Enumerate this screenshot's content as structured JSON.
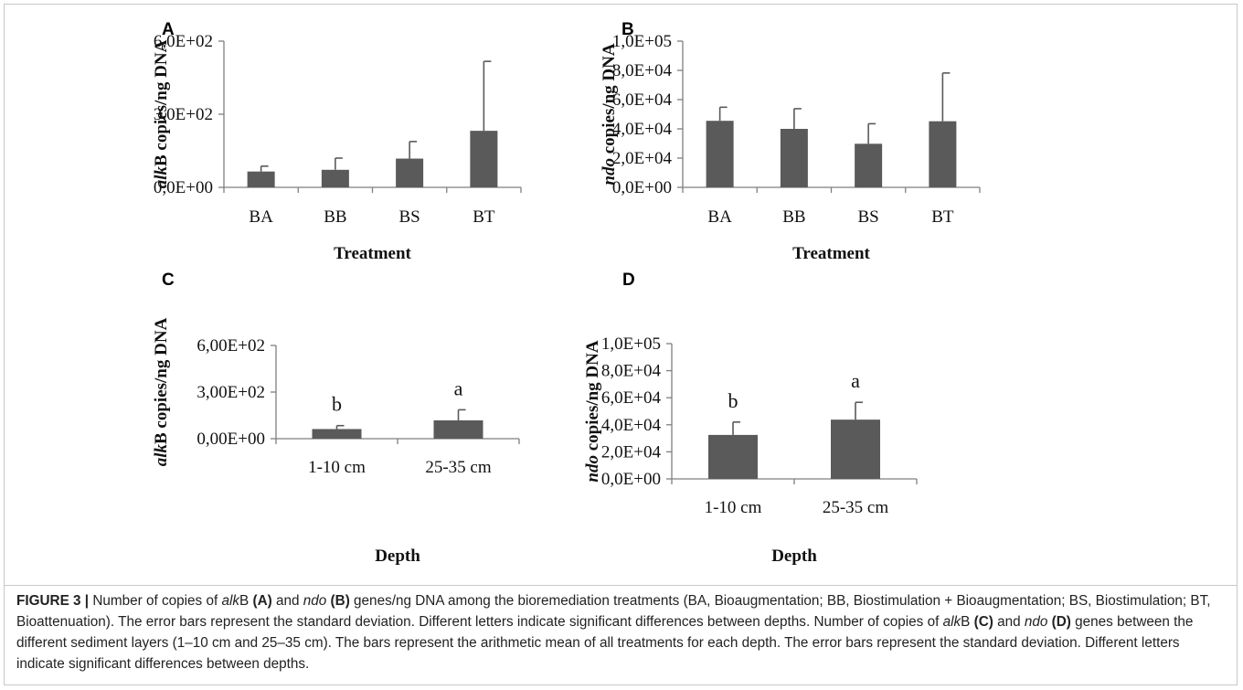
{
  "figure_label": "FIGURE 3 |",
  "caption": [
    {
      "t": "Number of copies of "
    },
    {
      "t": "alk",
      "i": true
    },
    {
      "t": "B "
    },
    {
      "t": "(A)",
      "b": true
    },
    {
      "t": " and "
    },
    {
      "t": "ndo",
      "i": true
    },
    {
      "t": " "
    },
    {
      "t": "(B)",
      "b": true
    },
    {
      "t": " genes/ng DNA among the bioremediation treatments (BA, Bioaugmentation; BB, Biostimulation + Bioaugmentation; BS, Biostimulation; BT, Bioattenuation). The error bars represent the standard deviation. Different letters indicate significant differences between depths. Number of copies of "
    },
    {
      "t": "alk",
      "i": true
    },
    {
      "t": "B "
    },
    {
      "t": "(C)",
      "b": true
    },
    {
      "t": " and "
    },
    {
      "t": "ndo",
      "i": true
    },
    {
      "t": " "
    },
    {
      "t": "(D)",
      "b": true
    },
    {
      "t": " genes between the different sediment layers (1–10 cm and 25–35 cm). The bars represent the arithmetic mean of all treatments for each depth. The error bars represent the standard deviation. Different letters indicate significant differences between depths."
    }
  ],
  "colors": {
    "bar": "#5a5a5a",
    "axis": "#7f7f7f",
    "text": "#111111"
  },
  "chart_data": [
    {
      "panel": "A",
      "type": "bar",
      "categories": [
        "BA",
        "BB",
        "BS",
        "BT"
      ],
      "values": [
        65,
        72,
        118,
        232
      ],
      "errors": [
        22,
        48,
        70,
        285
      ],
      "ylabel_italic": "alk",
      "ylabel_rest": "B copies/ng DNA",
      "xlabel": "Treatment",
      "ylim": [
        0,
        600
      ],
      "yticks": [
        0,
        300,
        600
      ],
      "ytick_labels": [
        "0,0E+00",
        "3,0E+02",
        "6,0E+02"
      ]
    },
    {
      "panel": "B",
      "type": "bar",
      "categories": [
        "BA",
        "BB",
        "BS",
        "BT"
      ],
      "values": [
        45500,
        40000,
        29800,
        45200
      ],
      "errors": [
        9300,
        13800,
        13700,
        33000
      ],
      "ylabel_italic": "ndo",
      "ylabel_rest": " copies/ng DNA",
      "xlabel": "Treatment",
      "ylim": [
        0,
        100000
      ],
      "yticks": [
        0,
        20000,
        40000,
        60000,
        80000,
        100000
      ],
      "ytick_labels": [
        "0,0E+00",
        "2,0E+04",
        "4,0E+04",
        "6,0E+04",
        "8,0E+04",
        "1,0E+05"
      ]
    },
    {
      "panel": "C",
      "type": "bar",
      "categories": [
        "1-10 cm",
        "25-35 cm"
      ],
      "values": [
        62,
        118
      ],
      "errors": [
        22,
        68
      ],
      "significance": [
        "b",
        "a"
      ],
      "ylabel_italic": "alk",
      "ylabel_rest": "B copies/ng DNA",
      "xlabel": "Depth",
      "ylim": [
        0,
        600
      ],
      "yticks": [
        0,
        300,
        600
      ],
      "ytick_labels": [
        "0,00E+00",
        "3,00E+02",
        "6,00E+02"
      ]
    },
    {
      "panel": "D",
      "type": "bar",
      "categories": [
        "1-10 cm",
        "25-35 cm"
      ],
      "values": [
        32500,
        43800
      ],
      "errors": [
        9500,
        12800
      ],
      "significance": [
        "b",
        "a"
      ],
      "ylabel_italic": "ndo",
      "ylabel_rest": " copies/ng DNA",
      "xlabel": "Depth",
      "ylim": [
        0,
        100000
      ],
      "yticks": [
        0,
        20000,
        40000,
        60000,
        80000,
        100000
      ],
      "ytick_labels": [
        "0,0E+00",
        "2,0E+04",
        "4,0E+04",
        "6,0E+04",
        "8,0E+04",
        "1,0E+05"
      ]
    }
  ]
}
